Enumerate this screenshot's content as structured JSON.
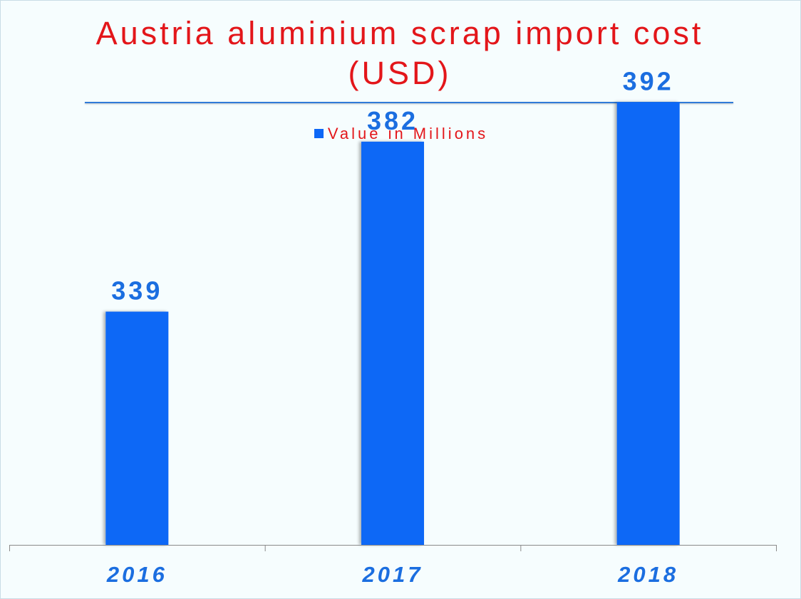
{
  "chart_data": {
    "type": "bar",
    "title": "Austria aluminium scrap import cost (USD)",
    "categories": [
      "2016",
      "2017",
      "2018"
    ],
    "series": [
      {
        "name": "Value in Millions",
        "values": [
          339,
          382,
          392
        ]
      }
    ],
    "data_labels": [
      "339",
      "382",
      "392"
    ],
    "legend_position": "top",
    "grid": false,
    "ylim": [
      280,
      420
    ],
    "colors": {
      "bar": "#0d67f6",
      "title": "#e3161a",
      "labels": "#1b6ee0"
    }
  }
}
